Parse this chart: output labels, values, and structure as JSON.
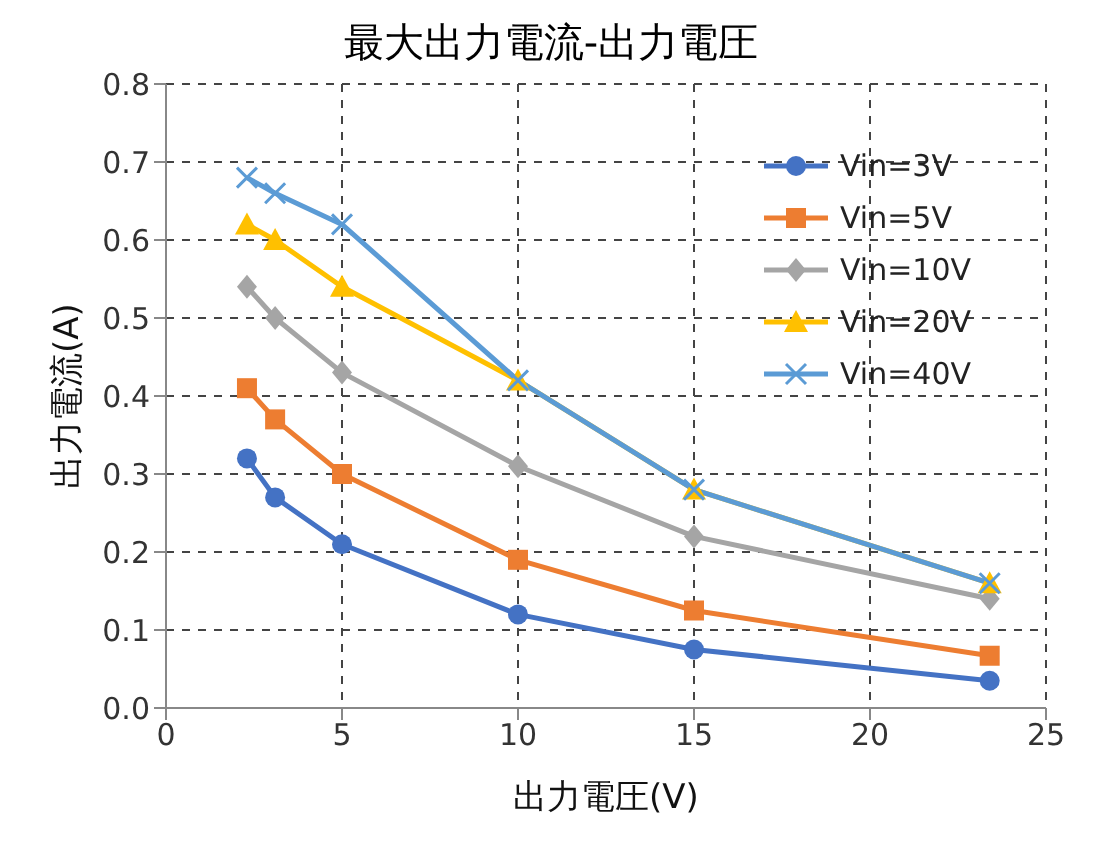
{
  "chart_data": {
    "type": "line",
    "title": "最大出力電流-出力電圧",
    "xlabel": "出力電圧(V)",
    "ylabel": "出力電流(A)",
    "xlim": [
      0,
      25
    ],
    "xticks": [
      0,
      5,
      10,
      15,
      20,
      25
    ],
    "ylim": [
      0,
      0.8
    ],
    "yticks": [
      {
        "value": 0,
        "label": "0.0"
      },
      0.1,
      0.2,
      0.3,
      0.4,
      0.5,
      0.6,
      0.7,
      0.8
    ],
    "grid": true,
    "legend": "right",
    "x": [
      2.3,
      3.1,
      5,
      10,
      15,
      23.4
    ],
    "series": [
      {
        "name": "Vin=3V",
        "color": "#4472c4",
        "marker": "circle",
        "values": [
          0.32,
          0.27,
          0.21,
          0.12,
          0.075,
          0.035
        ]
      },
      {
        "name": "Vin=5V",
        "color": "#ed7d31",
        "marker": "square",
        "values": [
          0.41,
          0.37,
          0.3,
          0.19,
          0.125,
          0.067
        ]
      },
      {
        "name": "Vin=10V",
        "color": "#a5a5a5",
        "marker": "diamond",
        "values": [
          0.54,
          0.5,
          0.43,
          0.31,
          0.22,
          0.14
        ]
      },
      {
        "name": "Vin=20V",
        "color": "#ffc000",
        "marker": "triangle",
        "values": [
          0.62,
          0.6,
          0.54,
          0.42,
          0.28,
          0.16
        ]
      },
      {
        "name": "Vin=40V",
        "color": "#5b9bd5",
        "marker": "cross",
        "values": [
          0.68,
          0.66,
          0.62,
          0.42,
          0.28,
          0.16
        ]
      }
    ]
  }
}
